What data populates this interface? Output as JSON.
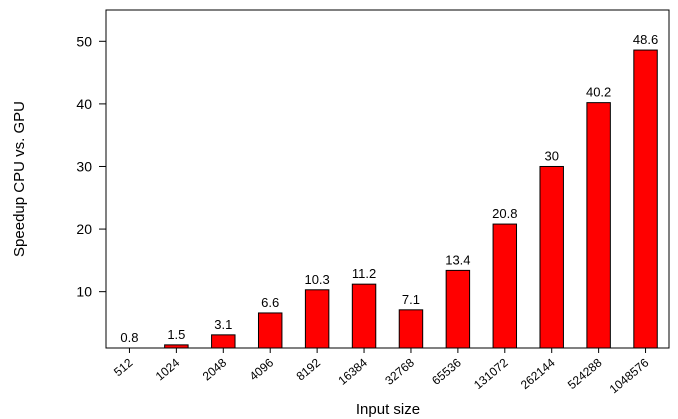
{
  "chart_data": {
    "type": "bar",
    "title": "",
    "xlabel": "Input size",
    "ylabel": "Speedup CPU vs. GPU",
    "categories": [
      "512",
      "1024",
      "2048",
      "4096",
      "8192",
      "16384",
      "32768",
      "65536",
      "131072",
      "262144",
      "524288",
      "1048576"
    ],
    "values": [
      0.8,
      1.5,
      3.1,
      6.6,
      10.3,
      11.2,
      7.1,
      13.4,
      20.8,
      30,
      40.2,
      48.6
    ],
    "value_labels": [
      "0.8",
      "1.5",
      "3.1",
      "6.6",
      "10.3",
      "11.2",
      "7.1",
      "13.4",
      "20.8",
      "30",
      "40.2",
      "48.6"
    ],
    "yticks": [
      10,
      20,
      30,
      40,
      50
    ],
    "ylim": [
      1,
      55
    ],
    "bar_color": "#ff0000",
    "bar_edge_color": "#000000",
    "grid": false,
    "legend": "none"
  }
}
